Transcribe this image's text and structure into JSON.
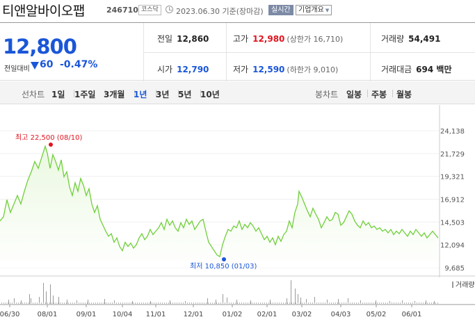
{
  "header": {
    "title": "티앤알바이오팹",
    "code": "246710",
    "market": "코스닥",
    "date": "2023.06.30 기준(장마감)",
    "realtime_btn": "실시간",
    "company_btn": "기업개요"
  },
  "quote": {
    "price": "12,800",
    "prev_label": "전일대비",
    "change": "60",
    "change_pct": "-0.47%",
    "prev_close": {
      "label": "전일",
      "value": "12,860"
    },
    "high": {
      "label": "고가",
      "value": "12,980",
      "note": "(상한가 16,710)"
    },
    "volume": {
      "label": "거래량",
      "value": "54,491"
    },
    "open": {
      "label": "시가",
      "value": "12,790"
    },
    "low": {
      "label": "저가",
      "value": "12,590",
      "note": "(하한가 9,010)"
    },
    "amount": {
      "label": "거래대금",
      "value": "694 백만"
    }
  },
  "tabs": {
    "line_label": "선차트",
    "line": [
      "1일",
      "1주일",
      "3개월",
      "1년",
      "3년",
      "5년",
      "10년"
    ],
    "active": "1년",
    "candle_label": "봉차트",
    "candle": [
      "일봉",
      "주봉",
      "월봉"
    ]
  },
  "chart_data": {
    "type": "area",
    "ylim": [
      9685,
      24138
    ],
    "y_ticks": [
      "24,138",
      "21,729",
      "19,321",
      "16,912",
      "14,503",
      "12,094",
      "9,685"
    ],
    "x_ticks": [
      "06/30",
      "08/01",
      "09/01",
      "10/04",
      "11/01",
      "12/01",
      "01/02",
      "02/01",
      "03/02",
      "04/03",
      "05/02",
      "06/01"
    ],
    "max_annotation": "최고 22,500 (08/10)",
    "min_annotation": "최저 10,850 (01/03)",
    "max_point": {
      "x": "08/10",
      "y": 22500
    },
    "min_point": {
      "x": "01/03",
      "y": 10850
    },
    "volume_legend": "거래량",
    "colors": {
      "line": "#6fcf3a",
      "fill": "#eaf8e0",
      "max": "#e0141e",
      "min": "#1a56d8",
      "volume": "#999999"
    }
  }
}
